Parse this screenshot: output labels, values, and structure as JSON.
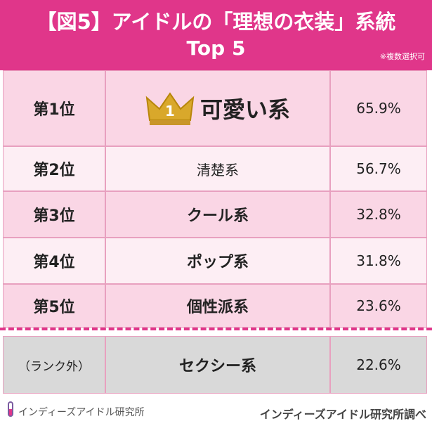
{
  "header": {
    "title": "【図5】アイドルの「理想の衣装」系統",
    "subtitle": "Top 5",
    "note": "※複数選択可"
  },
  "table": {
    "rows": [
      {
        "rank": "第1位",
        "item": "可愛い系",
        "percent": "65.9%",
        "badge": "1"
      },
      {
        "rank": "第2位",
        "item": "清楚系",
        "percent": "56.7%"
      },
      {
        "rank": "第3位",
        "item": "クール系",
        "percent": "32.8%"
      },
      {
        "rank": "第4位",
        "item": "ポップ系",
        "percent": "31.8%"
      },
      {
        "rank": "第5位",
        "item": "個性派系",
        "percent": "23.6%"
      },
      {
        "rank": "（ランク外）",
        "item": "セクシー系",
        "percent": "22.6%"
      }
    ]
  },
  "footer": {
    "logo": "インディーズアイドル研究所",
    "source": "インディーズアイドル研究所調べ"
  }
}
